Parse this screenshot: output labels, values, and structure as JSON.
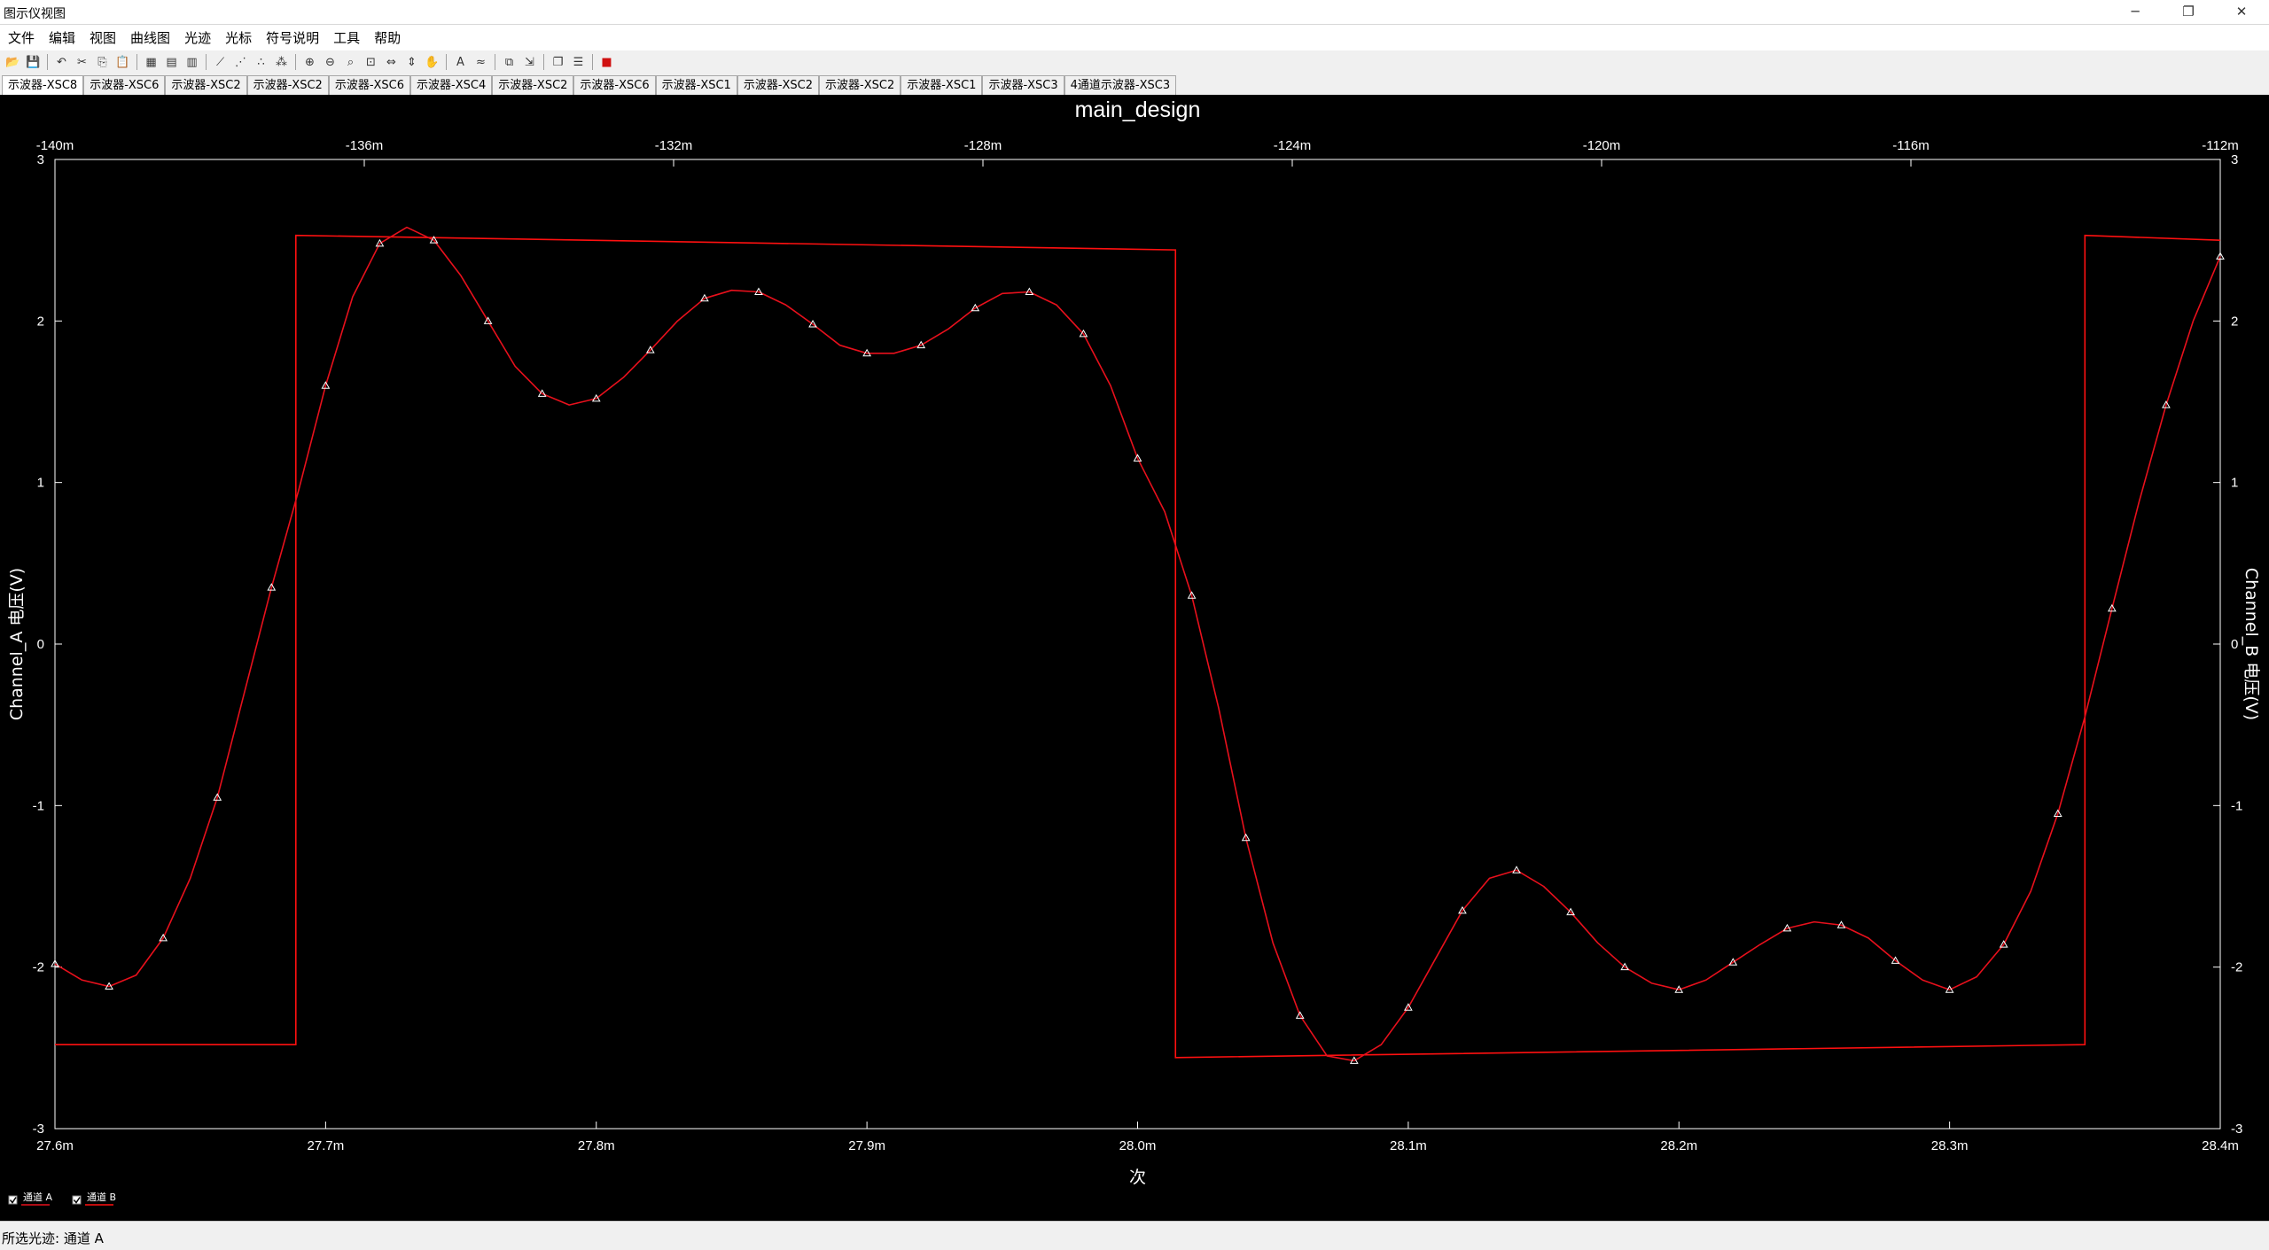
{
  "window": {
    "title": "图示仪视图",
    "minimize": "─",
    "restore": "❐",
    "close": "✕"
  },
  "menu": [
    "文件",
    "编辑",
    "视图",
    "曲线图",
    "光迹",
    "光标",
    "符号说明",
    "工具",
    "帮助"
  ],
  "toolbar_icons": [
    "open-icon",
    "save-icon",
    "|",
    "undo-icon",
    "cut-icon",
    "copy-icon",
    "paste-icon",
    "|",
    "grid-icon",
    "legend-icon",
    "bar-icon",
    "|",
    "cursor-icon",
    "markers-icon",
    "points-icon",
    "points-alt-icon",
    "|",
    "zoom-in-icon",
    "zoom-out-icon",
    "zoom-area-icon",
    "zoom-fit-icon",
    "zoom-x-icon",
    "zoom-y-icon",
    "pan-icon",
    "|",
    "text-icon",
    "overlay-icon",
    "|",
    "merge-icon",
    "export-icon",
    "|",
    "copy-graph-icon",
    "properties-icon",
    "|",
    "stop-icon"
  ],
  "tabs": [
    "示波器-XSC8",
    "示波器-XSC6",
    "示波器-XSC2",
    "示波器-XSC2",
    "示波器-XSC6",
    "示波器-XSC4",
    "示波器-XSC2",
    "示波器-XSC6",
    "示波器-XSC1",
    "示波器-XSC2",
    "示波器-XSC2",
    "示波器-XSC1",
    "示波器-XSC3",
    "4通道示波器-XSC3"
  ],
  "active_tab": 0,
  "status": {
    "selected_trace": "所选光迹: 通道 A"
  },
  "colors": {
    "background": "#000000",
    "axis": "#ffffff",
    "channel_a": "#e8101c",
    "channel_b": "#ff1010",
    "stop": "#d01010"
  },
  "chart_data": {
    "type": "line",
    "title": "main_design",
    "xlabel": "次",
    "ylabel_left": "Channel_A 电压(V)",
    "ylabel_right": "Channel_B 电压(V)",
    "x_bottom": {
      "min": 27.6,
      "max": 28.4,
      "ticks": [
        27.6,
        27.7,
        27.8,
        27.9,
        28.0,
        28.1,
        28.2,
        28.3,
        28.4
      ],
      "tick_labels": [
        "27.6m",
        "27.7m",
        "27.8m",
        "27.9m",
        "28.0m",
        "28.1m",
        "28.2m",
        "28.3m",
        "28.4m"
      ]
    },
    "x_top": {
      "min": -140,
      "max": -112,
      "ticks": [
        -140,
        -136,
        -132,
        -128,
        -124,
        -120,
        -116,
        -112
      ],
      "tick_labels": [
        "-140m",
        "-136m",
        "-132m",
        "-128m",
        "-124m",
        "-120m",
        "-116m",
        "-112m"
      ]
    },
    "y": {
      "min": -3,
      "max": 3,
      "ticks": [
        -3,
        -2,
        -1,
        0,
        1,
        2,
        3
      ],
      "tick_labels": [
        "-3",
        "-2",
        "-1",
        "0",
        "1",
        "2",
        "3"
      ]
    },
    "grid": false,
    "legend": {
      "placement": "bottom-left",
      "entries": [
        {
          "label": "通道 A",
          "checked": true
        },
        {
          "label": "通道 B",
          "checked": true
        }
      ]
    },
    "series": [
      {
        "name": "通道 A",
        "marker": "triangle",
        "x": [
          27.6,
          27.61,
          27.62,
          27.63,
          27.64,
          27.65,
          27.66,
          27.67,
          27.68,
          27.69,
          27.7,
          27.71,
          27.72,
          27.73,
          27.74,
          27.75,
          27.76,
          27.77,
          27.78,
          27.79,
          27.8,
          27.81,
          27.82,
          27.83,
          27.84,
          27.85,
          27.86,
          27.87,
          27.88,
          27.89,
          27.9,
          27.91,
          27.92,
          27.93,
          27.94,
          27.95,
          27.96,
          27.97,
          27.98,
          27.99,
          28.0,
          28.01,
          28.02,
          28.03,
          28.04,
          28.05,
          28.06,
          28.07,
          28.08,
          28.09,
          28.1,
          28.11,
          28.12,
          28.13,
          28.14,
          28.15,
          28.16,
          28.17,
          28.18,
          28.19,
          28.2,
          28.21,
          28.22,
          28.23,
          28.24,
          28.25,
          28.26,
          28.27,
          28.28,
          28.29,
          28.3,
          28.31,
          28.32,
          28.33,
          28.34,
          28.35,
          28.36,
          28.37,
          28.38,
          28.39,
          28.4
        ],
        "y": [
          -1.98,
          -2.08,
          -2.12,
          -2.05,
          -1.82,
          -1.45,
          -0.95,
          -0.3,
          0.35,
          0.95,
          1.6,
          2.15,
          2.48,
          2.58,
          2.5,
          2.28,
          2.0,
          1.72,
          1.55,
          1.48,
          1.52,
          1.65,
          1.82,
          2.0,
          2.14,
          2.19,
          2.18,
          2.1,
          1.98,
          1.85,
          1.8,
          1.8,
          1.85,
          1.95,
          2.08,
          2.17,
          2.18,
          2.1,
          1.92,
          1.6,
          1.15,
          0.82,
          0.3,
          -0.4,
          -1.2,
          -1.85,
          -2.3,
          -2.55,
          -2.58,
          -2.48,
          -2.25,
          -1.95,
          -1.65,
          -1.45,
          -1.4,
          -1.5,
          -1.66,
          -1.85,
          -2.0,
          -2.1,
          -2.14,
          -2.08,
          -1.97,
          -1.86,
          -1.76,
          -1.72,
          -1.74,
          -1.82,
          -1.96,
          -2.08,
          -2.14,
          -2.06,
          -1.86,
          -1.53,
          -1.05,
          -0.45,
          0.22,
          0.88,
          1.48,
          2.0,
          2.4
        ]
      },
      {
        "name": "通道 B",
        "x": [
          27.6,
          27.689,
          27.689,
          28.014,
          28.014,
          28.35,
          28.35,
          28.4
        ],
        "y": [
          -2.48,
          -2.48,
          2.53,
          2.44,
          -2.56,
          -2.48,
          2.53,
          2.5
        ]
      }
    ]
  }
}
